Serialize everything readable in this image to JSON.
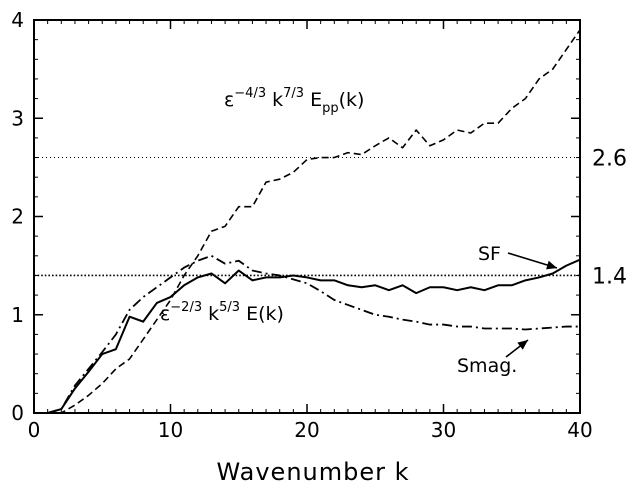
{
  "chart_data": {
    "type": "line",
    "title": "",
    "xlabel": "Wavenumber k",
    "ylabel": "",
    "xlim": [
      0,
      40
    ],
    "ylim": [
      0,
      4
    ],
    "xticks": [
      "0",
      "10",
      "20",
      "30",
      "40"
    ],
    "yticks": [
      "0",
      "1",
      "2",
      "3",
      "4"
    ],
    "reference_lines": [
      {
        "y": 2.6,
        "label": "2.6",
        "style": "dotted"
      },
      {
        "y": 1.4,
        "label": "1.4",
        "style": "dotted"
      }
    ],
    "annotations": {
      "epp_curve": {
        "base1": "ε",
        "sup1": "−4/3",
        "base2": " k",
        "sup2": "7/3",
        "base3": " E",
        "sub3": "pp",
        "base4": "(k)"
      },
      "e_curve": {
        "base1": "ε",
        "sup1": "−2/3",
        "base2": " k",
        "sup2": "5/3",
        "base3": " E(k)"
      },
      "sf": "SF",
      "smag": "Smag."
    },
    "series": [
      {
        "name": "SF",
        "style": "solid",
        "x": [
          1,
          2,
          3,
          4,
          5,
          6,
          7,
          8,
          9,
          10,
          11,
          12,
          13,
          14,
          15,
          16,
          17,
          18,
          19,
          20,
          21,
          22,
          23,
          24,
          25,
          26,
          27,
          28,
          29,
          30,
          31,
          32,
          33,
          34,
          35,
          36,
          37,
          38,
          39,
          40
        ],
        "values": [
          0.0,
          0.04,
          0.25,
          0.42,
          0.6,
          0.65,
          0.98,
          0.93,
          1.12,
          1.18,
          1.3,
          1.38,
          1.42,
          1.32,
          1.45,
          1.35,
          1.38,
          1.38,
          1.4,
          1.38,
          1.35,
          1.35,
          1.3,
          1.28,
          1.3,
          1.25,
          1.3,
          1.22,
          1.28,
          1.28,
          1.25,
          1.28,
          1.25,
          1.3,
          1.3,
          1.35,
          1.38,
          1.42,
          1.5,
          1.56
        ]
      },
      {
        "name": "Smag.",
        "style": "dash-dot",
        "x": [
          1,
          2,
          3,
          4,
          5,
          6,
          7,
          8,
          9,
          10,
          11,
          12,
          13,
          14,
          15,
          16,
          17,
          18,
          19,
          20,
          21,
          22,
          23,
          24,
          25,
          26,
          27,
          28,
          29,
          30,
          31,
          32,
          33,
          34,
          35,
          36,
          37,
          38,
          39,
          40
        ],
        "values": [
          0.0,
          0.04,
          0.28,
          0.45,
          0.62,
          0.8,
          1.05,
          1.18,
          1.28,
          1.38,
          1.48,
          1.55,
          1.6,
          1.52,
          1.55,
          1.45,
          1.42,
          1.4,
          1.36,
          1.32,
          1.24,
          1.15,
          1.1,
          1.05,
          1.0,
          0.98,
          0.95,
          0.93,
          0.9,
          0.9,
          0.88,
          0.88,
          0.86,
          0.86,
          0.86,
          0.85,
          0.86,
          0.87,
          0.88,
          0.88
        ]
      },
      {
        "name": "",
        "style": "dashed",
        "x": [
          1,
          2,
          3,
          4,
          5,
          6,
          7,
          8,
          9,
          10,
          11,
          12,
          13,
          14,
          15,
          16,
          17,
          18,
          19,
          20,
          21,
          22,
          23,
          24,
          25,
          26,
          27,
          28,
          29,
          30,
          31,
          32,
          33,
          34,
          35,
          36,
          37,
          38,
          39,
          40
        ],
        "values": [
          0.0,
          0.0,
          0.08,
          0.18,
          0.3,
          0.45,
          0.55,
          0.75,
          0.95,
          1.15,
          1.4,
          1.6,
          1.85,
          1.9,
          2.1,
          2.1,
          2.35,
          2.38,
          2.45,
          2.58,
          2.6,
          2.6,
          2.65,
          2.63,
          2.72,
          2.8,
          2.7,
          2.88,
          2.72,
          2.78,
          2.88,
          2.85,
          2.95,
          2.95,
          3.1,
          3.2,
          3.4,
          3.5,
          3.7,
          3.9
        ]
      }
    ]
  }
}
